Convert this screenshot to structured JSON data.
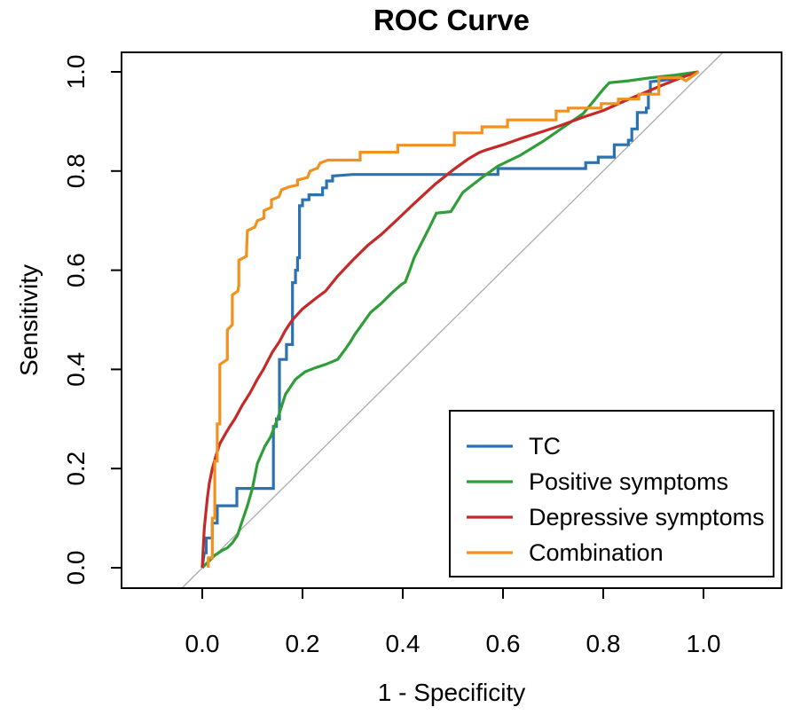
{
  "title": "ROC Curve",
  "axes": {
    "x_label": "1 - Specificity",
    "y_label": "Sensitivity",
    "x_ticks": [
      "0.0",
      "0.2",
      "0.4",
      "0.6",
      "0.8",
      "1.0"
    ],
    "y_ticks": [
      "0.0",
      "0.2",
      "0.4",
      "0.6",
      "0.8",
      "1.0"
    ]
  },
  "colors": {
    "axis": "#000000",
    "reference_line": "#a9a9a9",
    "background": "#ffffff"
  },
  "chart_data": {
    "type": "line",
    "title": "ROC Curve",
    "xlabel": "1 - Specificity",
    "ylabel": "Sensitivity",
    "xlim": [
      0,
      1
    ],
    "ylim": [
      0,
      1
    ],
    "grid": false,
    "legend_position": "bottom-right",
    "reference_line": {
      "from": [
        0,
        0
      ],
      "to": [
        1,
        1
      ],
      "color": "#a9a9a9",
      "style": "solid"
    },
    "series": [
      {
        "name": "TC",
        "color": "#2a72b0",
        "points": [
          [
            0,
            0
          ],
          [
            0.004,
            0.03
          ],
          [
            0.008,
            0.03
          ],
          [
            0.008,
            0.06
          ],
          [
            0.02,
            0.06
          ],
          [
            0.02,
            0.09
          ],
          [
            0.03,
            0.09
          ],
          [
            0.03,
            0.125
          ],
          [
            0.069,
            0.125
          ],
          [
            0.069,
            0.16
          ],
          [
            0.142,
            0.16
          ],
          [
            0.142,
            0.285
          ],
          [
            0.148,
            0.285
          ],
          [
            0.148,
            0.3
          ],
          [
            0.154,
            0.3
          ],
          [
            0.154,
            0.42
          ],
          [
            0.168,
            0.42
          ],
          [
            0.168,
            0.45
          ],
          [
            0.18,
            0.45
          ],
          [
            0.18,
            0.575
          ],
          [
            0.186,
            0.575
          ],
          [
            0.186,
            0.6
          ],
          [
            0.19,
            0.6
          ],
          [
            0.19,
            0.625
          ],
          [
            0.194,
            0.625
          ],
          [
            0.194,
            0.73
          ],
          [
            0.2,
            0.73
          ],
          [
            0.2,
            0.742
          ],
          [
            0.213,
            0.742
          ],
          [
            0.213,
            0.752
          ],
          [
            0.24,
            0.752
          ],
          [
            0.24,
            0.766
          ],
          [
            0.248,
            0.766
          ],
          [
            0.248,
            0.78
          ],
          [
            0.26,
            0.78
          ],
          [
            0.26,
            0.79
          ],
          [
            0.3,
            0.793
          ],
          [
            0.59,
            0.793
          ],
          [
            0.59,
            0.805
          ],
          [
            0.765,
            0.805
          ],
          [
            0.765,
            0.817
          ],
          [
            0.79,
            0.817
          ],
          [
            0.79,
            0.828
          ],
          [
            0.822,
            0.828
          ],
          [
            0.822,
            0.853
          ],
          [
            0.85,
            0.853
          ],
          [
            0.85,
            0.862
          ],
          [
            0.857,
            0.862
          ],
          [
            0.857,
            0.885
          ],
          [
            0.868,
            0.885
          ],
          [
            0.868,
            0.918
          ],
          [
            0.886,
            0.918
          ],
          [
            0.886,
            0.927
          ],
          [
            0.89,
            0.927
          ],
          [
            0.89,
            0.96
          ],
          [
            0.894,
            0.96
          ],
          [
            0.894,
            0.98
          ],
          [
            0.92,
            0.983
          ],
          [
            0.95,
            0.988
          ],
          [
            0.99,
            1.0
          ]
        ]
      },
      {
        "name": "Positive symptoms",
        "color": "#2f9e38",
        "points": [
          [
            0,
            0
          ],
          [
            0.012,
            0.012
          ],
          [
            0.025,
            0.025
          ],
          [
            0.04,
            0.035
          ],
          [
            0.05,
            0.04
          ],
          [
            0.06,
            0.05
          ],
          [
            0.07,
            0.065
          ],
          [
            0.08,
            0.095
          ],
          [
            0.09,
            0.125
          ],
          [
            0.1,
            0.16
          ],
          [
            0.11,
            0.21
          ],
          [
            0.125,
            0.245
          ],
          [
            0.136,
            0.263
          ],
          [
            0.15,
            0.3
          ],
          [
            0.166,
            0.35
          ],
          [
            0.186,
            0.38
          ],
          [
            0.205,
            0.395
          ],
          [
            0.225,
            0.403
          ],
          [
            0.246,
            0.41
          ],
          [
            0.27,
            0.42
          ],
          [
            0.285,
            0.44
          ],
          [
            0.295,
            0.455
          ],
          [
            0.304,
            0.47
          ],
          [
            0.336,
            0.515
          ],
          [
            0.357,
            0.533
          ],
          [
            0.379,
            0.555
          ],
          [
            0.398,
            0.572
          ],
          [
            0.405,
            0.576
          ],
          [
            0.414,
            0.6
          ],
          [
            0.423,
            0.626
          ],
          [
            0.44,
            0.66
          ],
          [
            0.455,
            0.69
          ],
          [
            0.467,
            0.715
          ],
          [
            0.496,
            0.718
          ],
          [
            0.52,
            0.757
          ],
          [
            0.558,
            0.787
          ],
          [
            0.59,
            0.81
          ],
          [
            0.635,
            0.832
          ],
          [
            0.68,
            0.86
          ],
          [
            0.72,
            0.888
          ],
          [
            0.76,
            0.916
          ],
          [
            0.78,
            0.94
          ],
          [
            0.8,
            0.965
          ],
          [
            0.812,
            0.978
          ],
          [
            0.85,
            0.982
          ],
          [
            0.894,
            0.988
          ],
          [
            0.94,
            0.993
          ],
          [
            0.99,
            1.0
          ]
        ]
      },
      {
        "name": "Depressive symptoms",
        "color": "#c42a28",
        "points": [
          [
            0,
            0
          ],
          [
            0.002,
            0.04
          ],
          [
            0.004,
            0.08
          ],
          [
            0.007,
            0.11
          ],
          [
            0.01,
            0.14
          ],
          [
            0.014,
            0.17
          ],
          [
            0.02,
            0.2
          ],
          [
            0.027,
            0.225
          ],
          [
            0.035,
            0.25
          ],
          [
            0.045,
            0.268
          ],
          [
            0.055,
            0.285
          ],
          [
            0.065,
            0.3
          ],
          [
            0.08,
            0.328
          ],
          [
            0.095,
            0.352
          ],
          [
            0.11,
            0.38
          ],
          [
            0.122,
            0.4
          ],
          [
            0.14,
            0.435
          ],
          [
            0.154,
            0.456
          ],
          [
            0.166,
            0.479
          ],
          [
            0.18,
            0.5
          ],
          [
            0.2,
            0.522
          ],
          [
            0.225,
            0.542
          ],
          [
            0.246,
            0.558
          ],
          [
            0.27,
            0.588
          ],
          [
            0.3,
            0.62
          ],
          [
            0.33,
            0.65
          ],
          [
            0.357,
            0.672
          ],
          [
            0.39,
            0.703
          ],
          [
            0.42,
            0.732
          ],
          [
            0.464,
            0.773
          ],
          [
            0.5,
            0.802
          ],
          [
            0.53,
            0.824
          ],
          [
            0.552,
            0.837
          ],
          [
            0.565,
            0.842
          ],
          [
            0.6,
            0.853
          ],
          [
            0.64,
            0.867
          ],
          [
            0.68,
            0.88
          ],
          [
            0.71,
            0.89
          ],
          [
            0.764,
            0.91
          ],
          [
            0.8,
            0.922
          ],
          [
            0.84,
            0.94
          ],
          [
            0.88,
            0.957
          ],
          [
            0.92,
            0.974
          ],
          [
            0.96,
            0.99
          ],
          [
            0.99,
            1.0
          ]
        ]
      },
      {
        "name": "Combination",
        "color": "#f19120",
        "points": [
          [
            0.012,
            0
          ],
          [
            0.012,
            0.02
          ],
          [
            0.02,
            0.02
          ],
          [
            0.02,
            0.1
          ],
          [
            0.025,
            0.1
          ],
          [
            0.025,
            0.215
          ],
          [
            0.03,
            0.215
          ],
          [
            0.03,
            0.29
          ],
          [
            0.035,
            0.29
          ],
          [
            0.035,
            0.41
          ],
          [
            0.05,
            0.42
          ],
          [
            0.05,
            0.48
          ],
          [
            0.06,
            0.49
          ],
          [
            0.06,
            0.55
          ],
          [
            0.071,
            0.558
          ],
          [
            0.073,
            0.57
          ],
          [
            0.073,
            0.62
          ],
          [
            0.088,
            0.628
          ],
          [
            0.09,
            0.68
          ],
          [
            0.105,
            0.687
          ],
          [
            0.11,
            0.7
          ],
          [
            0.123,
            0.705
          ],
          [
            0.123,
            0.72
          ],
          [
            0.138,
            0.727
          ],
          [
            0.138,
            0.742
          ],
          [
            0.153,
            0.748
          ],
          [
            0.158,
            0.762
          ],
          [
            0.173,
            0.768
          ],
          [
            0.19,
            0.772
          ],
          [
            0.19,
            0.782
          ],
          [
            0.21,
            0.787
          ],
          [
            0.215,
            0.8
          ],
          [
            0.23,
            0.806
          ],
          [
            0.235,
            0.816
          ],
          [
            0.25,
            0.822
          ],
          [
            0.315,
            0.822
          ],
          [
            0.315,
            0.838
          ],
          [
            0.39,
            0.838
          ],
          [
            0.39,
            0.852
          ],
          [
            0.503,
            0.852
          ],
          [
            0.503,
            0.877
          ],
          [
            0.558,
            0.877
          ],
          [
            0.558,
            0.889
          ],
          [
            0.609,
            0.889
          ],
          [
            0.609,
            0.903
          ],
          [
            0.706,
            0.903
          ],
          [
            0.706,
            0.921
          ],
          [
            0.73,
            0.921
          ],
          [
            0.73,
            0.927
          ],
          [
            0.796,
            0.927
          ],
          [
            0.796,
            0.936
          ],
          [
            0.83,
            0.936
          ],
          [
            0.83,
            0.945
          ],
          [
            0.871,
            0.945
          ],
          [
            0.871,
            0.955
          ],
          [
            0.911,
            0.955
          ],
          [
            0.911,
            0.988
          ],
          [
            0.955,
            0.988
          ],
          [
            0.965,
            0.982
          ],
          [
            0.99,
            1.0
          ]
        ]
      }
    ]
  }
}
